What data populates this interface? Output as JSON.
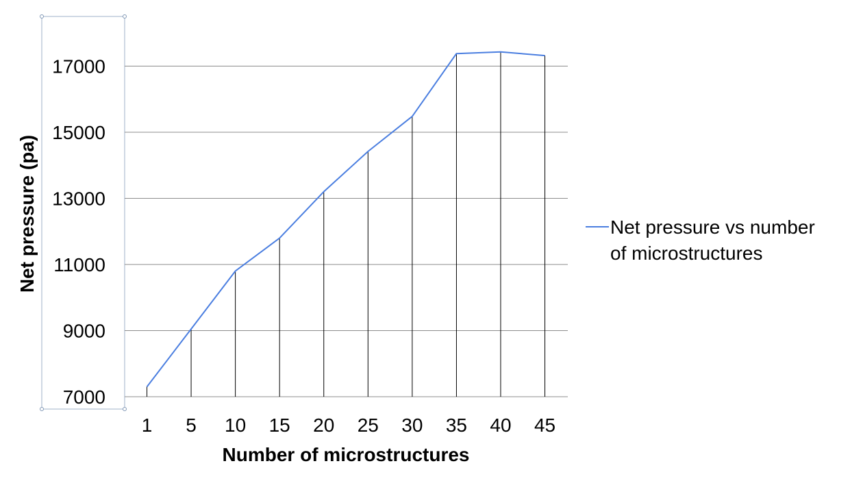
{
  "chart_data": {
    "type": "line",
    "title": "",
    "xlabel": "Number of microstructures",
    "ylabel": "Net pressure  (pa)",
    "categories": [
      "1",
      "5",
      "10",
      "15",
      "20",
      "25",
      "30",
      "35",
      "40",
      "45"
    ],
    "series": [
      {
        "name": "Net pressure vs number of microstructures",
        "legend_lines": [
          "Net pressure  vs number",
          "of microstructures"
        ],
        "color": "#4a7ee0",
        "values": [
          7300,
          9050,
          10800,
          11800,
          13200,
          14420,
          15480,
          17380,
          17430,
          17320
        ]
      }
    ],
    "y_ticks": [
      "7000",
      "9000",
      "11000",
      "13000",
      "15000",
      "17000"
    ],
    "y_tick_values": [
      7000,
      9000,
      11000,
      13000,
      15000,
      17000
    ],
    "ylim": [
      7000,
      17800
    ],
    "grid": true,
    "drop_lines": true,
    "legend_position": "right",
    "colors": {
      "grid": "#8c8c8c",
      "drop_line": "#000000",
      "selection_frame": "#9fb1c8"
    }
  }
}
